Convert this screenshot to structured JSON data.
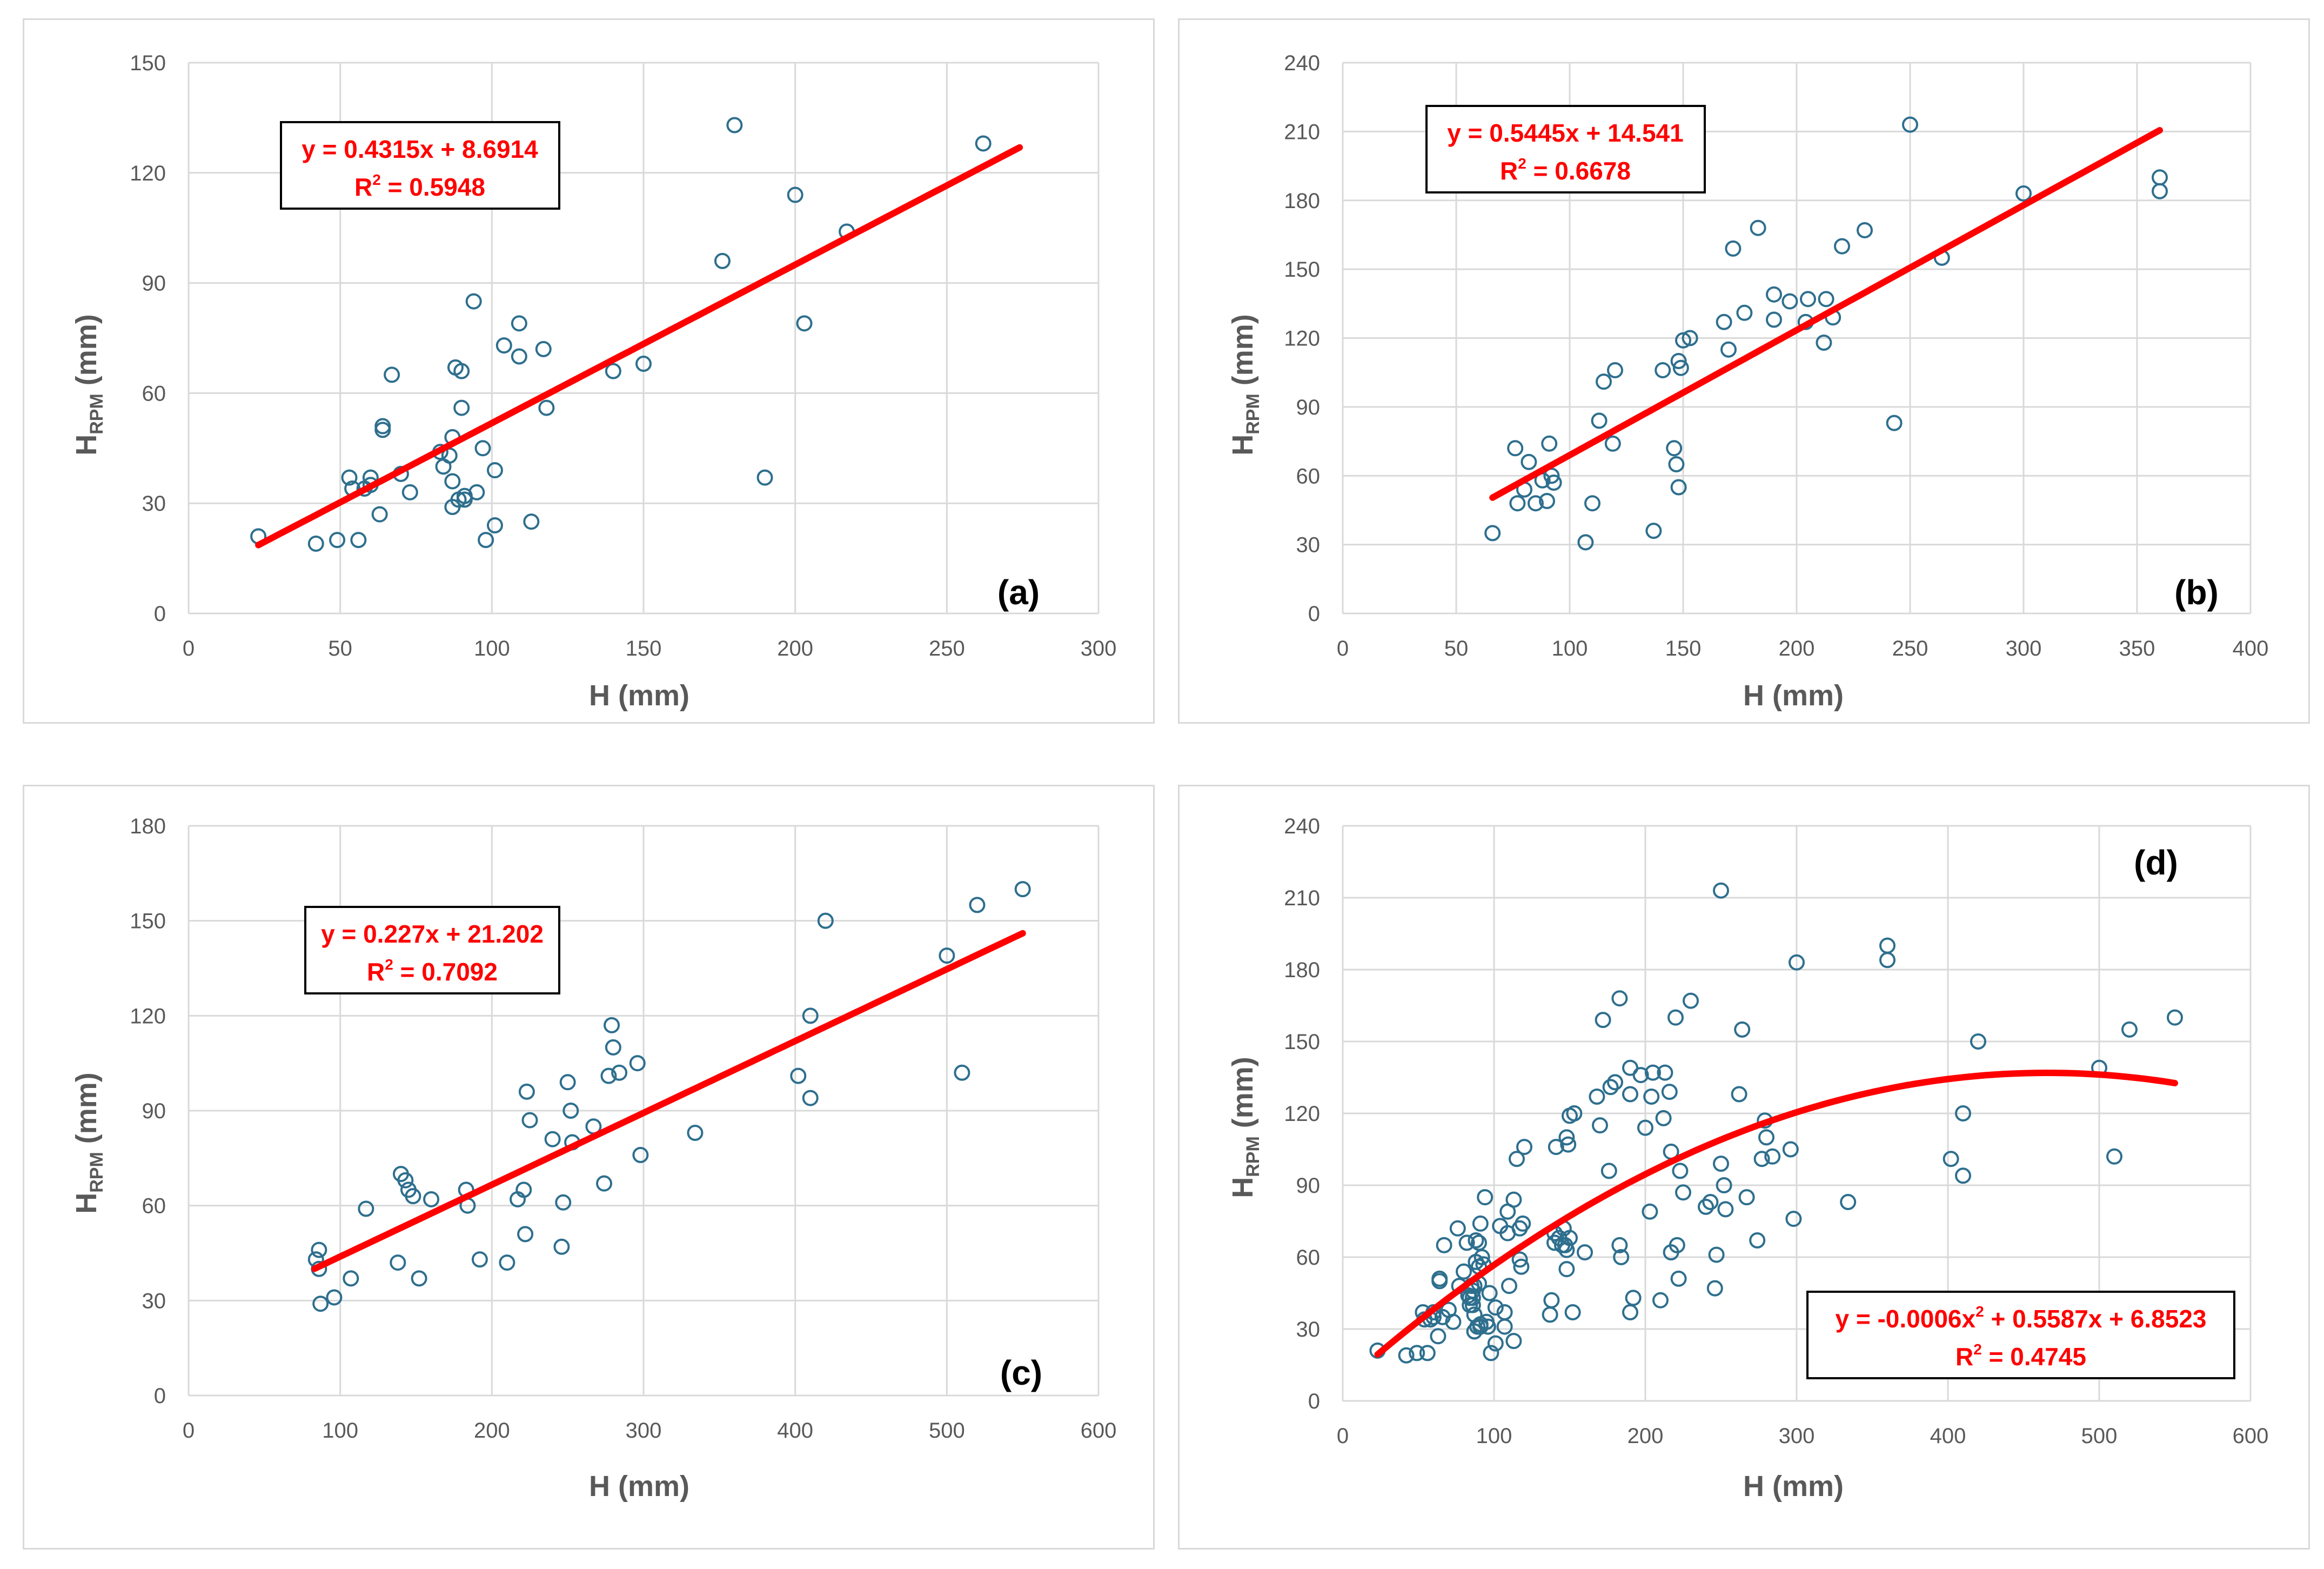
{
  "colors": {
    "marker": "#2e6f8e",
    "trendline": "#ff0000",
    "grid": "#d9d9d9",
    "text": "#595959"
  },
  "chart_data": [
    {
      "id": "a",
      "type": "scatter",
      "panel_label": "(a)",
      "xlabel": "H (mm)",
      "ylabel_main": "H",
      "ylabel_sub": "RPM",
      "ylabel_unit": " (mm)",
      "xlim": [
        0,
        300
      ],
      "ylim": [
        0,
        150
      ],
      "xticks": [
        0,
        50,
        100,
        150,
        200,
        250,
        300
      ],
      "yticks": [
        0,
        30,
        60,
        90,
        120,
        150
      ],
      "grid": true,
      "equation": "y = 0.4315x + 8.6914",
      "r2_label": "R",
      "r2_sup": "2",
      "r2_value": " = 0.5948",
      "fit": {
        "kind": "linear",
        "coefficients": [
          0.4315,
          8.6914
        ],
        "x_range": [
          23,
          274
        ]
      },
      "x": [
        23,
        42,
        49,
        53,
        54,
        56,
        58,
        60,
        60,
        63,
        64,
        64,
        67,
        70,
        73,
        83,
        84,
        86,
        87,
        87,
        87,
        88,
        89,
        90,
        90,
        91,
        91,
        94,
        95,
        97,
        98,
        101,
        101,
        104,
        109,
        109,
        113,
        117,
        118,
        140,
        150,
        176,
        180,
        190,
        200,
        203,
        217,
        262
      ],
      "y": [
        21,
        19,
        20,
        37,
        34,
        20,
        34,
        35,
        37,
        27,
        50,
        51,
        65,
        38,
        33,
        44,
        40,
        43,
        36,
        48,
        29,
        67,
        31,
        66,
        56,
        32,
        31,
        85,
        33,
        45,
        20,
        39,
        24,
        73,
        79,
        70,
        25,
        72,
        56,
        66,
        68,
        96,
        133,
        37,
        114,
        79,
        104,
        128
      ]
    },
    {
      "id": "b",
      "type": "scatter",
      "panel_label": "(b)",
      "xlabel": "H (mm)",
      "ylabel_main": "H",
      "ylabel_sub": "RPM",
      "ylabel_unit": " (mm)",
      "xlim": [
        0,
        400
      ],
      "ylim": [
        0,
        240
      ],
      "xticks": [
        0,
        50,
        100,
        150,
        200,
        250,
        300,
        350,
        400
      ],
      "yticks": [
        0,
        30,
        60,
        90,
        120,
        150,
        180,
        210,
        240
      ],
      "grid": true,
      "equation": "y = 0.5445x + 14.541",
      "r2_label": "R",
      "r2_sup": "2",
      "r2_value": " = 0.6678",
      "fit": {
        "kind": "linear",
        "coefficients": [
          0.5445,
          14.541
        ],
        "x_range": [
          66,
          360
        ]
      },
      "x": [
        66,
        76,
        77,
        80,
        82,
        85,
        88,
        90,
        91,
        92,
        93,
        107,
        110,
        113,
        115,
        119,
        120,
        137,
        141,
        146,
        147,
        148,
        148,
        149,
        150,
        153,
        168,
        170,
        172,
        177,
        183,
        190,
        190,
        197,
        204,
        205,
        212,
        213,
        216,
        220,
        230,
        243,
        250,
        264,
        300,
        360,
        360
      ],
      "y": [
        35,
        72,
        48,
        54,
        66,
        48,
        58,
        49,
        74,
        60,
        57,
        31,
        48,
        84,
        101,
        74,
        106,
        36,
        106,
        72,
        65,
        55,
        110,
        107,
        119,
        120,
        127,
        115,
        159,
        131,
        168,
        128,
        139,
        136,
        127,
        137,
        118,
        137,
        129,
        160,
        167,
        83,
        213,
        155,
        183,
        190,
        184
      ]
    },
    {
      "id": "c",
      "type": "scatter",
      "panel_label": "(c)",
      "xlabel": "H (mm)",
      "ylabel_main": "H",
      "ylabel_sub": "RPM",
      "ylabel_unit": " (mm)",
      "xlim": [
        0,
        600
      ],
      "ylim": [
        0,
        180
      ],
      "xticks": [
        0,
        100,
        200,
        300,
        400,
        500,
        600
      ],
      "yticks": [
        0,
        30,
        60,
        90,
        120,
        150,
        180
      ],
      "grid": true,
      "equation": "y = 0.227x + 21.202",
      "r2_label": "R",
      "r2_sup": "2",
      "r2_value": " = 0.7092",
      "fit": {
        "kind": "linear",
        "coefficients": [
          0.227,
          21.202
        ],
        "x_range": [
          83,
          550
        ]
      },
      "x": [
        84,
        86,
        86,
        87,
        96,
        107,
        117,
        138,
        140,
        143,
        145,
        148,
        152,
        160,
        183,
        184,
        192,
        210,
        217,
        221,
        222,
        223,
        225,
        240,
        246,
        247,
        250,
        252,
        253,
        267,
        274,
        277,
        279,
        280,
        284,
        296,
        298,
        334,
        402,
        410,
        410,
        420,
        500,
        510,
        520,
        550
      ],
      "y": [
        43,
        40,
        46,
        29,
        31,
        37,
        59,
        42,
        70,
        68,
        65,
        63,
        37,
        62,
        65,
        60,
        43,
        42,
        62,
        65,
        51,
        96,
        87,
        81,
        47,
        61,
        99,
        90,
        80,
        85,
        67,
        101,
        117,
        110,
        102,
        105,
        76,
        83,
        101,
        120,
        94,
        150,
        139,
        102,
        155,
        160
      ]
    },
    {
      "id": "d",
      "type": "scatter",
      "panel_label": "(d)",
      "xlabel": "H (mm)",
      "ylabel_main": "H",
      "ylabel_sub": "RPM",
      "ylabel_unit": " (mm)",
      "xlim": [
        0,
        600
      ],
      "ylim": [
        0,
        240
      ],
      "xticks": [
        0,
        100,
        200,
        300,
        400,
        500,
        600
      ],
      "yticks": [
        0,
        30,
        60,
        90,
        120,
        150,
        180,
        210,
        240
      ],
      "grid": true,
      "equation": "y = -0.0006x",
      "equation_sup": "2",
      "equation_rest": " + 0.5587x + 6.8523",
      "r2_label": "R",
      "r2_sup": "2",
      "r2_value": " = 0.4745",
      "fit": {
        "kind": "quadratic",
        "coefficients": [
          -0.0006,
          0.5587,
          6.8523
        ],
        "x_range": [
          23,
          550
        ]
      },
      "x": [
        23,
        42,
        49,
        53,
        54,
        56,
        58,
        60,
        60,
        63,
        64,
        64,
        67,
        70,
        73,
        83,
        84,
        86,
        87,
        87,
        87,
        88,
        89,
        90,
        90,
        91,
        91,
        94,
        95,
        97,
        98,
        101,
        101,
        104,
        109,
        109,
        113,
        117,
        118,
        140,
        150,
        176,
        180,
        190,
        200,
        203,
        217,
        262,
        66,
        76,
        77,
        80,
        82,
        85,
        88,
        90,
        91,
        92,
        93,
        107,
        110,
        113,
        115,
        119,
        120,
        137,
        141,
        146,
        147,
        148,
        148,
        149,
        150,
        153,
        168,
        170,
        172,
        177,
        183,
        190,
        190,
        197,
        204,
        205,
        212,
        213,
        216,
        220,
        230,
        243,
        250,
        264,
        300,
        360,
        360,
        84,
        86,
        86,
        87,
        96,
        107,
        117,
        138,
        140,
        143,
        145,
        148,
        152,
        160,
        183,
        184,
        192,
        210,
        217,
        221,
        222,
        223,
        225,
        240,
        246,
        247,
        250,
        252,
        253,
        267,
        274,
        277,
        279,
        280,
        284,
        296,
        298,
        334,
        402,
        410,
        410,
        420,
        500,
        510,
        520,
        550
      ],
      "y": [
        21,
        19,
        20,
        37,
        34,
        20,
        34,
        35,
        37,
        27,
        50,
        51,
        65,
        38,
        33,
        44,
        40,
        43,
        36,
        48,
        29,
        67,
        31,
        66,
        56,
        32,
        31,
        85,
        33,
        45,
        20,
        39,
        24,
        73,
        79,
        70,
        25,
        72,
        56,
        66,
        68,
        96,
        133,
        37,
        114,
        79,
        104,
        128,
        35,
        72,
        48,
        54,
        66,
        48,
        58,
        49,
        74,
        60,
        57,
        31,
        48,
        84,
        101,
        74,
        106,
        36,
        106,
        72,
        65,
        55,
        110,
        107,
        119,
        120,
        127,
        115,
        159,
        131,
        168,
        128,
        139,
        136,
        127,
        137,
        118,
        137,
        129,
        160,
        167,
        83,
        213,
        155,
        183,
        190,
        184,
        43,
        40,
        46,
        29,
        31,
        37,
        59,
        42,
        70,
        68,
        65,
        63,
        37,
        62,
        65,
        60,
        43,
        42,
        62,
        65,
        51,
        96,
        87,
        81,
        47,
        61,
        99,
        90,
        80,
        85,
        67,
        101,
        117,
        110,
        102,
        105,
        76,
        83,
        101,
        120,
        94,
        150,
        139,
        102,
        155,
        160
      ]
    }
  ]
}
